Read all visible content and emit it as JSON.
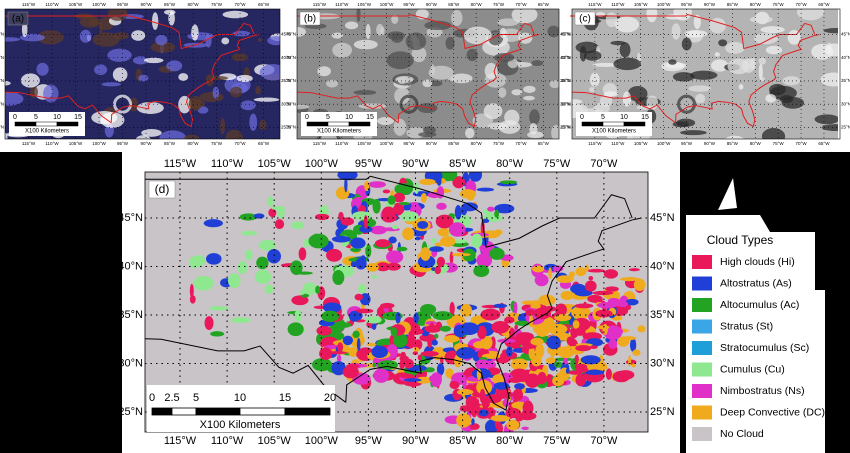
{
  "small_panels": [
    {
      "label": "(a)"
    },
    {
      "label": "(b)"
    },
    {
      "label": "(c)"
    }
  ],
  "small_map": {
    "x_ticks": [
      "115°W",
      "110°W",
      "105°W",
      "100°W",
      "95°W",
      "90°W",
      "85°W",
      "80°W",
      "75°W",
      "70°W",
      "65°W"
    ],
    "y_ticks": [
      "45°N",
      "40°N",
      "35°N",
      "30°N",
      "25°N"
    ],
    "scale_ticks": [
      "0",
      "5",
      "10",
      "15"
    ],
    "scale_unit": "X100 Kilometers"
  },
  "main_panel": {
    "label": "(d)",
    "x_ticks": [
      "115°W",
      "110°W",
      "105°W",
      "100°W",
      "95°W",
      "90°W",
      "85°W",
      "80°W",
      "75°W",
      "70°W"
    ],
    "y_ticks": [
      "45°N",
      "40°N",
      "35°N",
      "30°N",
      "25°N"
    ],
    "scale_ticks": [
      "0",
      "2.5",
      "5",
      "10",
      "15",
      "20"
    ],
    "scale_unit": "X100 Kilometers"
  },
  "legend": {
    "title": "Cloud Types",
    "items": [
      {
        "name": "High clouds (Hi)",
        "color": "#e8185a"
      },
      {
        "name": "Altostratus (As)",
        "color": "#1f3fd6"
      },
      {
        "name": "Altocumulus (Ac)",
        "color": "#22a422"
      },
      {
        "name": "Stratus (St)",
        "color": "#3aa6e6"
      },
      {
        "name": "Stratocumulus (Sc)",
        "color": "#1e9fd8"
      },
      {
        "name": "Cumulus (Cu)",
        "color": "#8fe88f"
      },
      {
        "name": "Nimbostratus (Ns)",
        "color": "#e030c8"
      },
      {
        "name": "Deep Convective (DC)",
        "color": "#f0aa1e"
      },
      {
        "name": "No Cloud",
        "color": "#c8c4c8"
      }
    ]
  }
}
